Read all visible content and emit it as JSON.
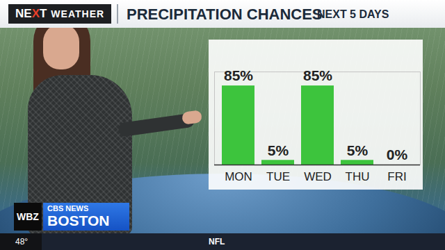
{
  "header": {
    "logo": "NEXT",
    "logo_section": "WEATHER"
  },
  "chart_data": {
    "type": "bar",
    "title": "PRECIPITATION CHANCES",
    "subtitle": "NEXT 5 DAYS",
    "categories": [
      "MON",
      "TUE",
      "WED",
      "THU",
      "FRI"
    ],
    "values": [
      85,
      5,
      85,
      5,
      0
    ],
    "value_labels": [
      "85%",
      "5%",
      "85%",
      "5%",
      "0%"
    ],
    "data_labels": true,
    "color": "#3dc43d",
    "ylim": [
      0,
      100
    ],
    "yticks": [],
    "tick_labels": "x"
  },
  "footer": {
    "station": "WBZ",
    "network": "CBS NEWS",
    "city": "BOSTON",
    "temperature": "48°",
    "ticker": "NFL"
  }
}
